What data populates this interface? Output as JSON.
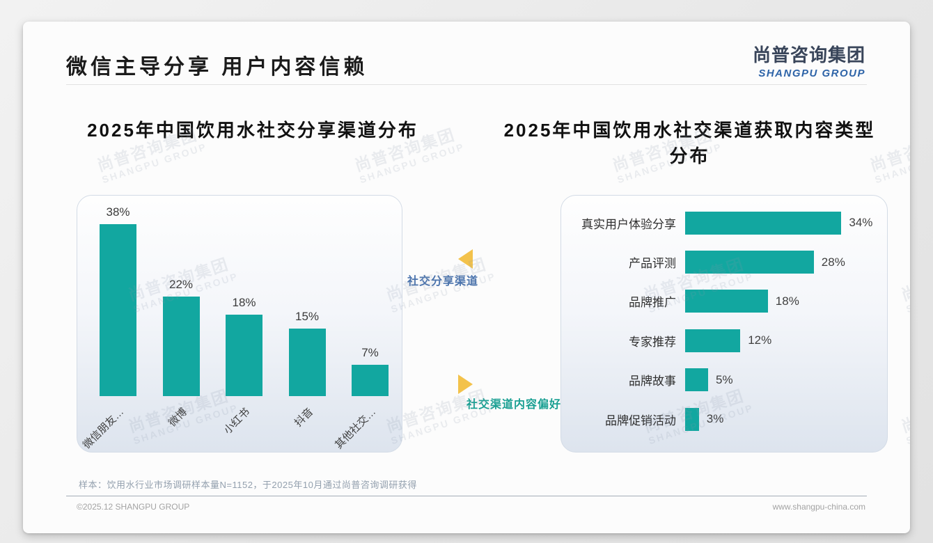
{
  "header": {
    "title": "微信主导分享 用户内容信赖",
    "logo_cn": "尚普咨询集团",
    "logo_en": "SHANGPU GROUP"
  },
  "watermark": {
    "line1": "尚普咨询集团",
    "line2": "SHANGPU GROUP"
  },
  "chart_data": [
    {
      "type": "bar",
      "orientation": "vertical",
      "title": "2025年中国饮用水社交分享渠道分布",
      "categories": [
        "微信朋友…",
        "微博",
        "小红书",
        "抖音",
        "其他社交…"
      ],
      "values": [
        38,
        22,
        18,
        15,
        7
      ],
      "value_labels": [
        "38%",
        "22%",
        "18%",
        "15%",
        "7%"
      ],
      "unit": "%",
      "bar_color": "#12a7a0",
      "ylim": [
        0,
        40
      ],
      "grid": false,
      "legend": "none"
    },
    {
      "type": "bar",
      "orientation": "horizontal",
      "title": "2025年中国饮用水社交渠道获取内容类型分布",
      "categories": [
        "真实用户体验分享",
        "产品评测",
        "品牌推广",
        "专家推荐",
        "品牌故事",
        "品牌促销活动"
      ],
      "values": [
        34,
        28,
        18,
        12,
        5,
        3
      ],
      "value_labels": [
        "34%",
        "28%",
        "18%",
        "12%",
        "5%",
        "3%"
      ],
      "unit": "%",
      "bar_color": "#12a7a0",
      "xlim": [
        0,
        36
      ],
      "grid": false,
      "legend": "none"
    }
  ],
  "annotations": {
    "left": {
      "label": "社交分享渠道",
      "color": "#4a73ad",
      "arrow_color": "#f3c24b",
      "arrow_direction": "left"
    },
    "right": {
      "label": "社交渠道内容偏好",
      "color": "#1ba093",
      "arrow_color": "#f3c24b",
      "arrow_direction": "right"
    }
  },
  "footer": {
    "sample_note": "样本：饮用水行业市场调研样本量N=1152，于2025年10月通过尚普咨询调研获得",
    "copyright": "©2025.12 SHANGPU GROUP",
    "website": "www.shangpu-china.com"
  }
}
